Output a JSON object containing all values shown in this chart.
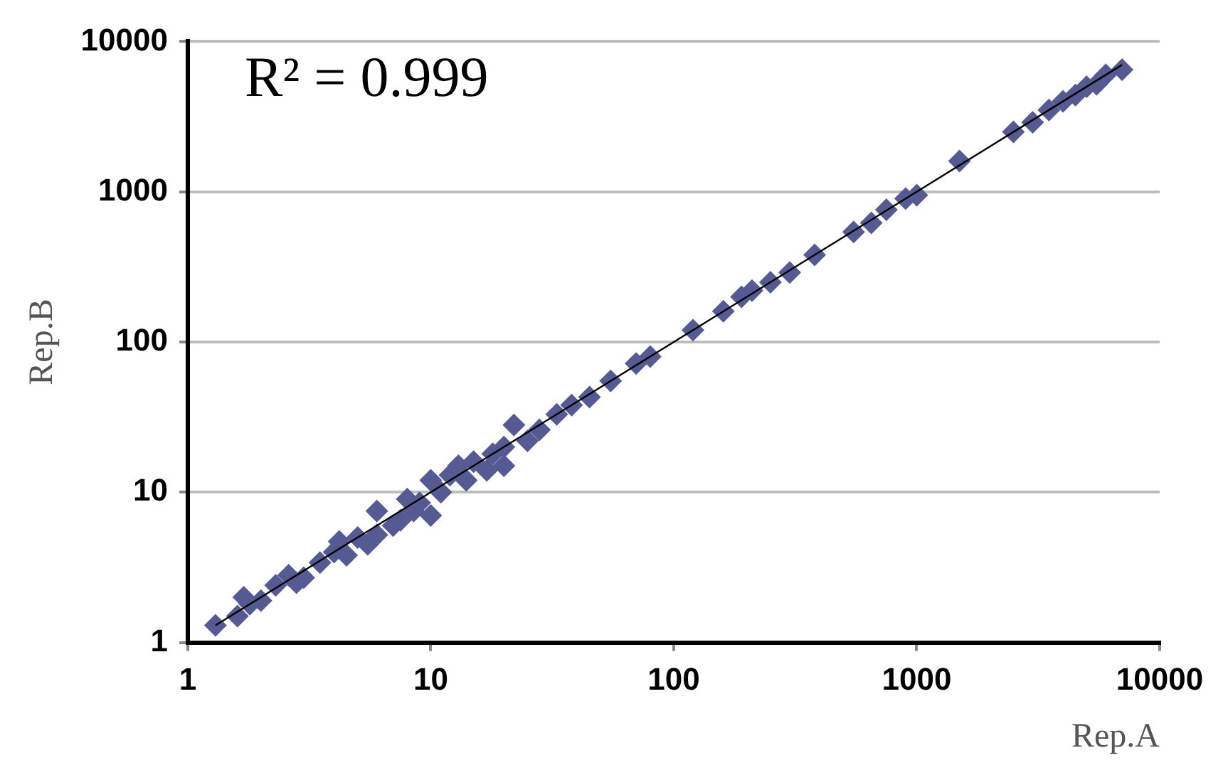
{
  "chart_data": {
    "type": "scatter",
    "xlabel": "Rep.A",
    "ylabel": "Rep.B",
    "annotations": [
      "R² = 0.999"
    ],
    "log": "xy",
    "grid": "y",
    "marker": "diamond",
    "legend": false,
    "xlim": [
      1,
      10000
    ],
    "ylim": [
      1,
      10000
    ],
    "xticks": [
      1,
      10,
      100,
      1000,
      10000
    ],
    "yticks": [
      1,
      10,
      100,
      1000,
      10000
    ],
    "series": [
      {
        "color": "#555a92",
        "x": [
          1.3,
          1.6,
          1.7,
          1.8,
          2.0,
          2.3,
          2.6,
          2.8,
          3,
          3.5,
          4,
          4.2,
          4.5,
          5,
          5.5,
          6,
          6,
          7,
          7.5,
          8,
          8.5,
          9,
          10,
          10,
          11,
          12,
          13,
          14,
          15,
          17,
          18,
          20,
          20,
          22,
          25,
          28,
          33,
          38,
          45,
          55,
          70,
          80,
          120,
          160,
          190,
          210,
          250,
          300,
          380,
          550,
          650,
          750,
          900,
          1000,
          1500,
          2500,
          3000,
          3500,
          4000,
          4500,
          5000,
          5500,
          6000,
          7000
        ],
        "values": [
          1.3,
          1.5,
          2.0,
          1.8,
          1.9,
          2.4,
          2.8,
          2.5,
          2.7,
          3.4,
          4,
          4.7,
          3.8,
          5,
          4.5,
          7.5,
          5.2,
          6,
          6.5,
          9,
          7.5,
          8.5,
          7,
          12,
          10,
          13,
          15,
          12,
          16,
          14,
          18,
          15,
          20,
          28,
          22,
          26,
          33,
          38,
          43,
          55,
          72,
          80,
          120,
          160,
          200,
          220,
          250,
          290,
          380,
          540,
          620,
          760,
          900,
          950,
          1600,
          2500,
          2900,
          3500,
          4000,
          4400,
          5000,
          5200,
          6000,
          6500
        ]
      },
      {
        "type": "line",
        "color": "#000000",
        "marker": "none",
        "x": [
          1.3,
          7000
        ],
        "values": [
          1.3,
          7000
        ]
      }
    ]
  }
}
